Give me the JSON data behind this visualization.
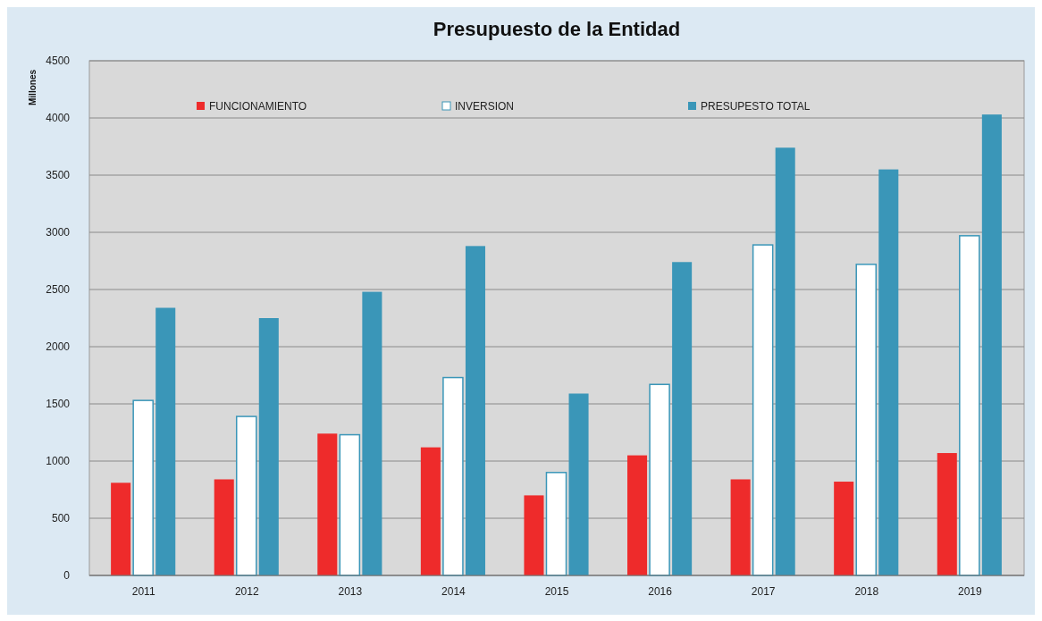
{
  "chart_data": {
    "type": "bar",
    "title": "Presupuesto de la Entidad",
    "ylabel": "Millones",
    "categories": [
      "2011",
      "2012",
      "2013",
      "2014",
      "2015",
      "2016",
      "2017",
      "2018",
      "2019"
    ],
    "series": [
      {
        "name": "FUNCIONAMIENTO",
        "color": "#ee2b2b",
        "values": [
          810,
          840,
          1240,
          1120,
          700,
          1050,
          840,
          820,
          1070
        ]
      },
      {
        "name": "INVERSION",
        "color": "#ffffff",
        "values": [
          1530,
          1390,
          1230,
          1730,
          900,
          1670,
          2890,
          2720,
          2970
        ]
      },
      {
        "name": "PRESUPESTO TOTAL",
        "color": "#3a96b8",
        "values": [
          2340,
          2250,
          2480,
          2880,
          1590,
          2740,
          3740,
          3550,
          4030
        ]
      }
    ],
    "ylim": [
      0,
      4500
    ],
    "yticks": [
      0,
      500,
      1000,
      1500,
      2000,
      2500,
      3000,
      3500,
      4000,
      4500
    ],
    "grid": "y",
    "legend": "top"
  }
}
